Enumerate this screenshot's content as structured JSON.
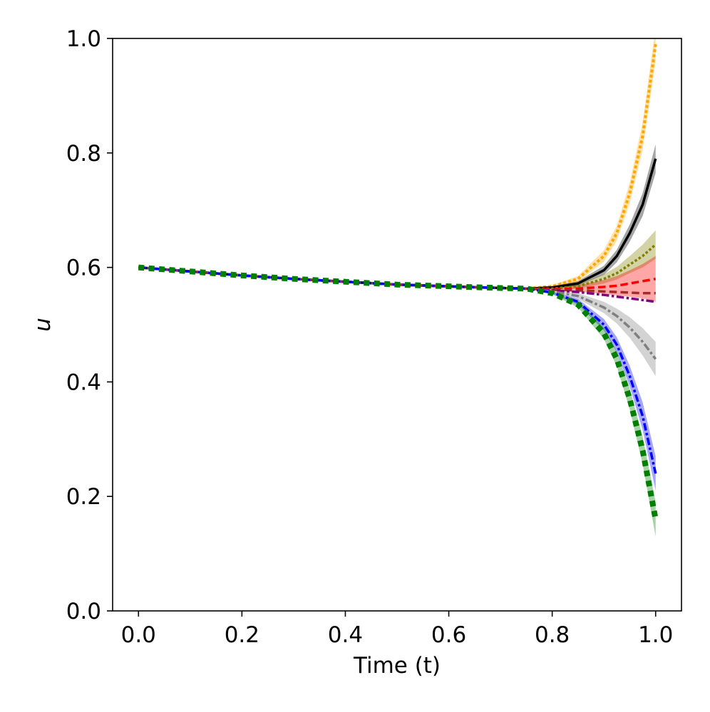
{
  "chart_data": {
    "type": "line",
    "xlabel": "Time (t)",
    "ylabel": "u",
    "x": [
      0,
      0.1,
      0.2,
      0.3,
      0.4,
      0.5,
      0.6,
      0.7,
      0.75,
      0.8,
      0.85,
      0.9,
      0.925,
      0.95,
      0.975,
      1.0
    ],
    "xlim": [
      -0.05,
      1.05
    ],
    "ylim": [
      0,
      1
    ],
    "xticks": [
      {
        "value": 0,
        "label": "0.0"
      },
      0.2,
      0.4,
      0.6,
      0.8,
      {
        "value": 1,
        "label": "1.0"
      }
    ],
    "yticks": [
      {
        "value": 0,
        "label": "0.0"
      },
      0.2,
      0.4,
      0.6,
      0.8,
      {
        "value": 1,
        "label": "1.0"
      }
    ],
    "series": [
      {
        "color": "#ffa500",
        "dash": "dotted",
        "linewidth": 4,
        "values": [
          0.6,
          0.593,
          0.586,
          0.58,
          0.575,
          0.57,
          0.567,
          0.564,
          0.563,
          0.567,
          0.58,
          0.62,
          0.66,
          0.73,
          0.83,
          0.99
        ],
        "lower": [
          null,
          null,
          null,
          null,
          null,
          null,
          null,
          null,
          0.563,
          0.565,
          0.575,
          0.61,
          0.647,
          0.712,
          0.806,
          0.96
        ],
        "upper": [
          null,
          null,
          null,
          null,
          null,
          null,
          null,
          null,
          0.563,
          0.569,
          0.585,
          0.63,
          0.673,
          0.748,
          0.854,
          1.02
        ]
      },
      {
        "color": "#000000",
        "dash": "solid",
        "linewidth": 3.5,
        "values": [
          0.6,
          0.593,
          0.586,
          0.58,
          0.575,
          0.57,
          0.567,
          0.564,
          0.563,
          0.565,
          0.572,
          0.595,
          0.62,
          0.66,
          0.71,
          0.79
        ],
        "lower": [
          null,
          null,
          null,
          null,
          null,
          null,
          null,
          null,
          0.563,
          0.563,
          0.568,
          0.587,
          0.609,
          0.645,
          0.69,
          0.765
        ],
        "upper": [
          null,
          null,
          null,
          null,
          null,
          null,
          null,
          null,
          0.563,
          0.567,
          0.576,
          0.603,
          0.631,
          0.675,
          0.73,
          0.815
        ]
      },
      {
        "color": "#808000",
        "dash": "dotted",
        "linewidth": 3.5,
        "values": [
          0.6,
          0.593,
          0.586,
          0.58,
          0.575,
          0.57,
          0.567,
          0.564,
          0.563,
          0.563,
          0.567,
          0.58,
          0.59,
          0.605,
          0.62,
          0.64
        ],
        "lower": [
          null,
          null,
          null,
          null,
          null,
          null,
          null,
          null,
          0.563,
          0.561,
          0.563,
          0.572,
          0.579,
          0.59,
          0.6,
          0.615
        ],
        "upper": [
          null,
          null,
          null,
          null,
          null,
          null,
          null,
          null,
          0.563,
          0.565,
          0.571,
          0.588,
          0.601,
          0.62,
          0.64,
          0.665
        ]
      },
      {
        "color": "#ff0000",
        "dash": "dashed",
        "linewidth": 3.5,
        "values": [
          0.6,
          0.593,
          0.586,
          0.58,
          0.575,
          0.57,
          0.567,
          0.564,
          0.563,
          0.562,
          0.563,
          0.566,
          0.568,
          0.572,
          0.576,
          0.58
        ],
        "lower": [
          null,
          null,
          null,
          null,
          null,
          null,
          null,
          null,
          0.563,
          0.559,
          0.557,
          0.554,
          0.551,
          0.549,
          0.546,
          0.54
        ],
        "upper": [
          null,
          null,
          null,
          null,
          null,
          null,
          null,
          null,
          0.563,
          0.565,
          0.569,
          0.578,
          0.585,
          0.595,
          0.606,
          0.62
        ]
      },
      {
        "color": "#a52a2a",
        "dash": "dashed",
        "linewidth": 3.5,
        "values": [
          0.6,
          0.593,
          0.586,
          0.58,
          0.575,
          0.57,
          0.567,
          0.564,
          0.563,
          0.561,
          0.56,
          0.558,
          0.557,
          0.556,
          0.555,
          0.555
        ]
      },
      {
        "color": "#800080",
        "dash": "dashdot",
        "linewidth": 3.5,
        "values": [
          0.6,
          0.593,
          0.586,
          0.58,
          0.575,
          0.57,
          0.567,
          0.564,
          0.563,
          0.56,
          0.557,
          0.552,
          0.549,
          0.546,
          0.543,
          0.54
        ]
      },
      {
        "color": "#808080",
        "dash": "dashdot",
        "linewidth": 3.5,
        "values": [
          0.6,
          0.593,
          0.586,
          0.58,
          0.575,
          0.57,
          0.567,
          0.564,
          0.563,
          0.558,
          0.55,
          0.53,
          0.515,
          0.495,
          0.47,
          0.44
        ],
        "lower": [
          null,
          null,
          null,
          null,
          null,
          null,
          null,
          null,
          0.563,
          0.556,
          0.545,
          0.52,
          0.502,
          0.477,
          0.446,
          0.41
        ],
        "upper": [
          null,
          null,
          null,
          null,
          null,
          null,
          null,
          null,
          0.563,
          0.56,
          0.555,
          0.54,
          0.528,
          0.513,
          0.494,
          0.47
        ]
      },
      {
        "color": "#0000ff",
        "dash": "dashdot",
        "linewidth": 3.5,
        "values": [
          0.6,
          0.593,
          0.586,
          0.58,
          0.575,
          0.57,
          0.567,
          0.564,
          0.563,
          0.556,
          0.54,
          0.5,
          0.465,
          0.41,
          0.34,
          0.24
        ],
        "lower": [
          null,
          null,
          null,
          null,
          null,
          null,
          null,
          null,
          0.563,
          0.554,
          0.535,
          0.49,
          0.452,
          0.392,
          0.316,
          0.21
        ],
        "upper": [
          null,
          null,
          null,
          null,
          null,
          null,
          null,
          null,
          0.563,
          0.558,
          0.545,
          0.51,
          0.478,
          0.428,
          0.364,
          0.27
        ]
      },
      {
        "color": "#008000",
        "dash": "dotted",
        "linewidth": 8,
        "values": [
          0.6,
          0.593,
          0.586,
          0.58,
          0.575,
          0.57,
          0.567,
          0.564,
          0.563,
          0.555,
          0.535,
          0.485,
          0.44,
          0.37,
          0.28,
          0.16
        ],
        "lower": [
          null,
          null,
          null,
          null,
          null,
          null,
          null,
          null,
          0.563,
          0.553,
          0.53,
          0.475,
          0.427,
          0.352,
          0.256,
          0.13
        ],
        "upper": [
          null,
          null,
          null,
          null,
          null,
          null,
          null,
          null,
          0.563,
          0.557,
          0.54,
          0.495,
          0.453,
          0.388,
          0.304,
          0.19
        ]
      }
    ]
  }
}
